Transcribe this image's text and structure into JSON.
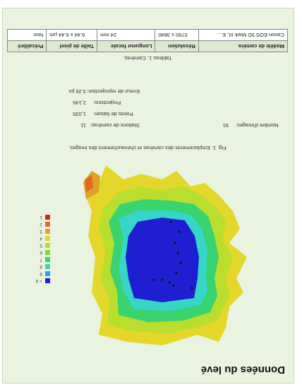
{
  "page": {
    "title": "Données du levé"
  },
  "figure": {
    "caption": "Fig. 1. Emplacements des caméras et chevauchement des images.",
    "legend": [
      "> 9",
      "9",
      "8",
      "7",
      "6",
      "5",
      "4",
      "3",
      "2",
      "1"
    ],
    "legend_colors": [
      "#1f1fd1",
      "#2fa3e6",
      "#37d6c9",
      "#39d36f",
      "#7fd83a",
      "#b9de2e",
      "#e3d72a",
      "#e0a12a",
      "#e06a1f",
      "#d42121"
    ],
    "camera_marker_color": "#111111"
  },
  "stats": {
    "images_label": "Nombre d'images:",
    "images_value": "91",
    "stations_label": "Stations de caméras:",
    "stations_value": "11",
    "tie_points_label": "Points de liaison:",
    "tie_points_value": "1,035",
    "projections_label": "Projections:",
    "projections_value": "2,146",
    "reprojection_label": "Erreur de reprojection:",
    "reprojection_value": "3.26 px"
  },
  "table": {
    "caption": "Tableau 1. Caméras.",
    "headers": [
      "Modèle de caméra",
      "Résolution",
      "Longueur focale",
      "Taille de pixel",
      "Précalibré"
    ],
    "rows": [
      [
        "Canon EOS 5D Mark III, E...",
        "5760 x 3840",
        "24 mm",
        "6.44 x 6.44 µm",
        "Non"
      ]
    ]
  }
}
